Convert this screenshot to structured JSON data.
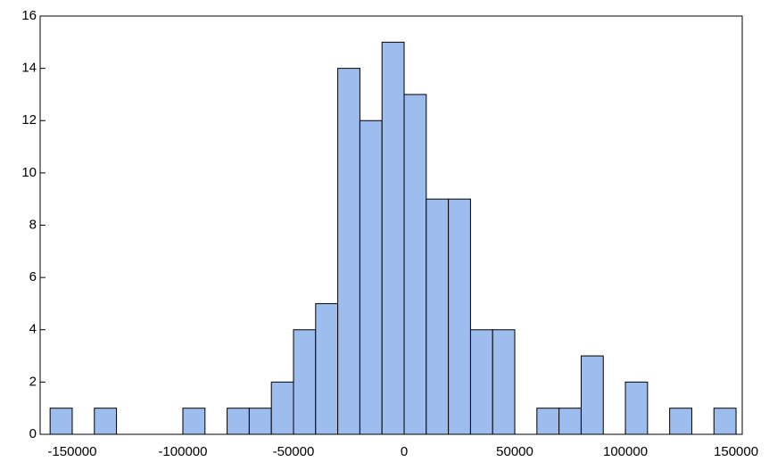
{
  "chart_data": {
    "type": "histogram",
    "bins": [
      -160000,
      -150000,
      -140000,
      -130000,
      -120000,
      -110000,
      -100000,
      -90000,
      -80000,
      -70000,
      -60000,
      -50000,
      -40000,
      -30000,
      -20000,
      -10000,
      0,
      10000,
      20000,
      30000,
      40000,
      50000,
      60000,
      70000,
      80000,
      90000,
      100000,
      110000,
      120000,
      130000,
      140000,
      150000
    ],
    "values": [
      1,
      0,
      1,
      0,
      0,
      0,
      1,
      0,
      1,
      1,
      2,
      4,
      5,
      14,
      12,
      15,
      13,
      9,
      9,
      4,
      4,
      0,
      1,
      1,
      3,
      0,
      2,
      0,
      1,
      0,
      1
    ],
    "color": "#9dbdef",
    "xlim": [
      -164500,
      152800
    ],
    "xticks": [
      -150000,
      -100000,
      -50000,
      0,
      50000,
      100000,
      150000
    ],
    "ylim": [
      0,
      16
    ],
    "yticks": [
      0,
      2,
      4,
      6,
      8,
      10,
      12,
      14,
      16
    ]
  }
}
